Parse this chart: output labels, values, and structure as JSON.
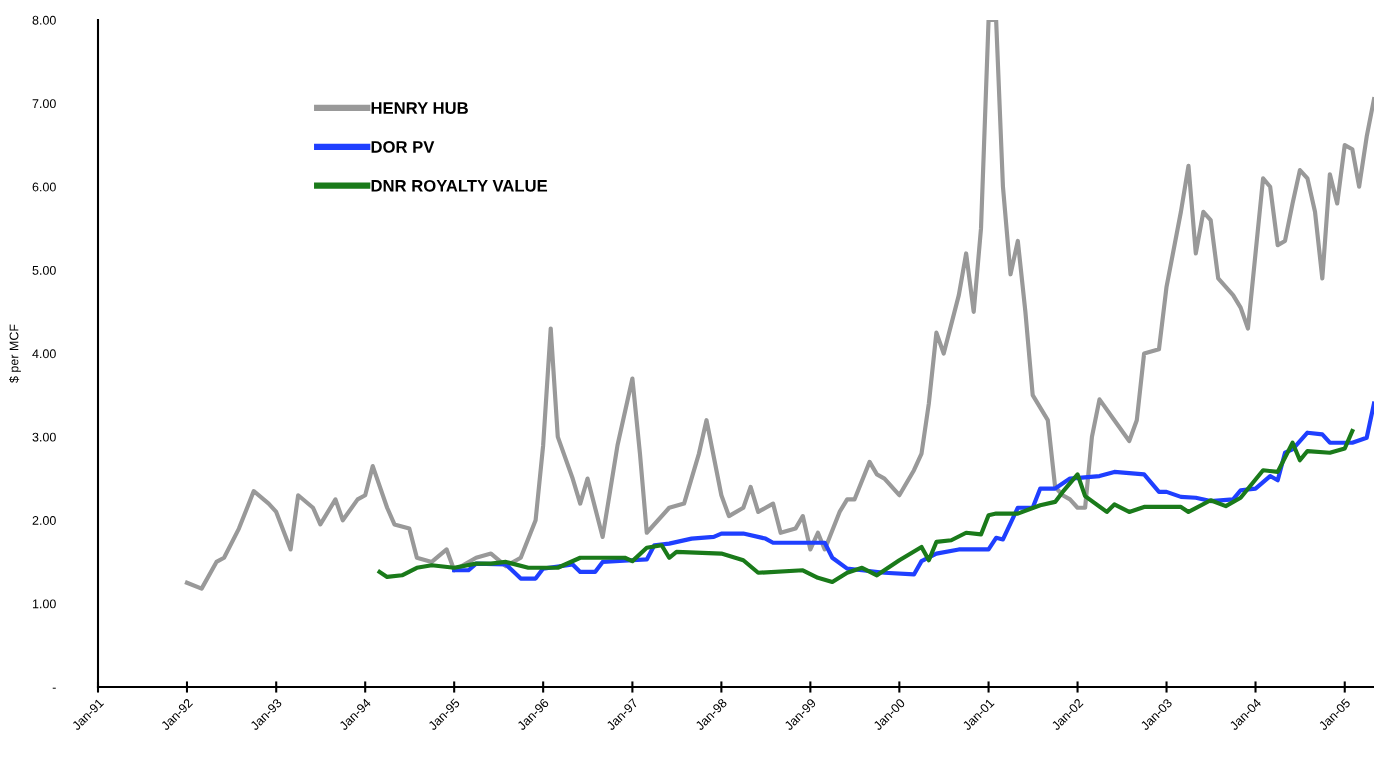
{
  "chart_data": {
    "type": "line",
    "ylabel": "$ per MCF",
    "xlim": [
      "1991-01",
      "2005-05"
    ],
    "ylim": [
      0,
      8
    ],
    "yticks": [
      {
        "value": 0,
        "label": "-"
      },
      {
        "value": 1,
        "label": "1.00"
      },
      {
        "value": 2,
        "label": "2.00"
      },
      {
        "value": 3,
        "label": "3.00"
      },
      {
        "value": 4,
        "label": "4.00"
      },
      {
        "value": 5,
        "label": "5.00"
      },
      {
        "value": 6,
        "label": "6.00"
      },
      {
        "value": 7,
        "label": "7.00"
      },
      {
        "value": 8,
        "label": "8.00"
      }
    ],
    "xticks": [
      {
        "value": "1991-01",
        "label": "Jan-91"
      },
      {
        "value": "1992-01",
        "label": "Jan-92"
      },
      {
        "value": "1993-01",
        "label": "Jan-93"
      },
      {
        "value": "1994-01",
        "label": "Jan-94"
      },
      {
        "value": "1995-01",
        "label": "Jan-95"
      },
      {
        "value": "1996-01",
        "label": "Jan-96"
      },
      {
        "value": "1997-01",
        "label": "Jan-97"
      },
      {
        "value": "1998-01",
        "label": "Jan-98"
      },
      {
        "value": "1999-01",
        "label": "Jan-99"
      },
      {
        "value": "2000-01",
        "label": "Jan-00"
      },
      {
        "value": "2001-01",
        "label": "Jan-01"
      },
      {
        "value": "2002-01",
        "label": "Jan-02"
      },
      {
        "value": "2003-01",
        "label": "Jan-03"
      },
      {
        "value": "2004-01",
        "label": "Jan-04"
      },
      {
        "value": "2005-01",
        "label": "Jan-05"
      }
    ],
    "grid": false,
    "legend": "top left",
    "marker": "none",
    "line_style": "solid",
    "series": [
      {
        "name": "HENRY HUB",
        "color": "#999999",
        "x": [
          "1992-01",
          "1992-03",
          "1992-05",
          "1992-06",
          "1992-08",
          "1992-10",
          "1992-12",
          "1993-01",
          "1993-03",
          "1993-04",
          "1993-06",
          "1993-07",
          "1993-09",
          "1993-10",
          "1993-12",
          "1994-01",
          "1994-02",
          "1994-04",
          "1994-05",
          "1994-07",
          "1994-08",
          "1994-10",
          "1994-12",
          "1995-01",
          "1995-04",
          "1995-06",
          "1995-08",
          "1995-10",
          "1995-12",
          "1996-01",
          "1996-02",
          "1996-03",
          "1996-05",
          "1996-06",
          "1996-07",
          "1996-09",
          "1996-11",
          "1997-01",
          "1997-02",
          "1997-03",
          "1997-06",
          "1997-08",
          "1997-10",
          "1997-11",
          "1998-01",
          "1998-02",
          "1998-04",
          "1998-05",
          "1998-06",
          "1998-08",
          "1998-09",
          "1998-11",
          "1998-12",
          "1999-01",
          "1999-02",
          "1999-03",
          "1999-05",
          "1999-06",
          "1999-07",
          "1999-09",
          "1999-10",
          "1999-11",
          "2000-01",
          "2000-03",
          "2000-04",
          "2000-05",
          "2000-06",
          "2000-07",
          "2000-09",
          "2000-10",
          "2000-11",
          "2000-12",
          "2001-01",
          "2001-02",
          "2001-03",
          "2001-04",
          "2001-05",
          "2001-06",
          "2001-07",
          "2001-09",
          "2001-10",
          "2001-11",
          "2001-12",
          "2002-01",
          "2002-02",
          "2002-03",
          "2002-04",
          "2002-06",
          "2002-08",
          "2002-09",
          "2002-10",
          "2002-12",
          "2003-01",
          "2003-03",
          "2003-04",
          "2003-05",
          "2003-06",
          "2003-07",
          "2003-08",
          "2003-10",
          "2003-11",
          "2003-12",
          "2004-02",
          "2004-03",
          "2004-04",
          "2004-05",
          "2004-06",
          "2004-07",
          "2004-08",
          "2004-09",
          "2004-10",
          "2004-11",
          "2004-12",
          "2005-01",
          "2005-02",
          "2005-03",
          "2005-04",
          "2005-05"
        ],
        "values": [
          1.25,
          1.18,
          1.5,
          1.55,
          1.9,
          2.35,
          2.2,
          2.1,
          1.65,
          2.3,
          2.15,
          1.95,
          2.25,
          2.0,
          2.25,
          2.3,
          2.65,
          2.15,
          1.95,
          1.9,
          1.55,
          1.5,
          1.65,
          1.4,
          1.55,
          1.6,
          1.45,
          1.55,
          2.0,
          2.9,
          4.3,
          3.0,
          2.5,
          2.2,
          2.5,
          1.8,
          2.9,
          3.7,
          2.8,
          1.85,
          2.15,
          2.2,
          2.8,
          3.2,
          2.3,
          2.05,
          2.15,
          2.4,
          2.1,
          2.2,
          1.85,
          1.9,
          2.05,
          1.65,
          1.85,
          1.65,
          2.1,
          2.25,
          2.25,
          2.7,
          2.55,
          2.5,
          2.3,
          2.6,
          2.8,
          3.4,
          4.25,
          4.0,
          4.7,
          5.2,
          4.5,
          5.5,
          8.0,
          8.0,
          6.0,
          4.95,
          5.35,
          4.5,
          3.5,
          3.2,
          2.4,
          2.3,
          2.25,
          2.15,
          2.15,
          3.0,
          3.45,
          3.2,
          2.95,
          3.2,
          4.0,
          4.05,
          4.8,
          5.7,
          6.25,
          5.2,
          5.7,
          5.6,
          4.9,
          4.7,
          4.55,
          4.3,
          6.1,
          6.0,
          5.3,
          5.35,
          5.8,
          6.2,
          6.1,
          5.7,
          4.9,
          6.15,
          5.8,
          6.5,
          6.45,
          6.0,
          6.6,
          7.05
        ]
      },
      {
        "name": "DOR PV",
        "color": "#1f3fff",
        "x": [
          "1995-01",
          "1995-03",
          "1995-04",
          "1995-08",
          "1995-10",
          "1995-12",
          "1996-01",
          "1996-05",
          "1996-06",
          "1996-08",
          "1996-09",
          "1997-01",
          "1997-03",
          "1997-04",
          "1997-06",
          "1997-09",
          "1997-12",
          "1998-01",
          "1998-04",
          "1998-07",
          "1998-08",
          "1999-03",
          "1999-04",
          "1999-06",
          "1999-08",
          "1999-11",
          "2000-03",
          "2000-04",
          "2000-06",
          "2000-09",
          "2001-01",
          "2001-02",
          "2001-03",
          "2001-05",
          "2001-07",
          "2001-08",
          "2001-10",
          "2001-12",
          "2002-04",
          "2002-06",
          "2002-10",
          "2002-12",
          "2003-01",
          "2003-03",
          "2003-05",
          "2003-07",
          "2003-10",
          "2003-11",
          "2004-01",
          "2004-03",
          "2004-04",
          "2004-05",
          "2004-06",
          "2004-08",
          "2004-10",
          "2004-11",
          "2005-02",
          "2005-04",
          "2005-05"
        ],
        "values": [
          1.4,
          1.4,
          1.48,
          1.47,
          1.3,
          1.3,
          1.42,
          1.47,
          1.38,
          1.38,
          1.5,
          1.52,
          1.53,
          1.7,
          1.72,
          1.78,
          1.8,
          1.84,
          1.84,
          1.78,
          1.73,
          1.73,
          1.55,
          1.42,
          1.4,
          1.37,
          1.35,
          1.51,
          1.6,
          1.65,
          1.65,
          1.79,
          1.77,
          2.15,
          2.15,
          2.38,
          2.38,
          2.5,
          2.53,
          2.58,
          2.55,
          2.34,
          2.34,
          2.28,
          2.27,
          2.23,
          2.25,
          2.36,
          2.38,
          2.53,
          2.48,
          2.81,
          2.85,
          3.05,
          3.03,
          2.93,
          2.93,
          2.99,
          3.4
        ]
      },
      {
        "name": "DNR ROYALTY VALUE",
        "color": "#1a7a1a",
        "x": [
          "1994-03",
          "1994-04",
          "1994-06",
          "1994-08",
          "1994-10",
          "1995-01",
          "1995-04",
          "1995-06",
          "1995-08",
          "1995-11",
          "1996-03",
          "1996-06",
          "1996-09",
          "1996-12",
          "1997-01",
          "1997-03",
          "1997-05",
          "1997-06",
          "1997-07",
          "1998-01",
          "1998-04",
          "1998-06",
          "1998-12",
          "1999-02",
          "1999-04",
          "1999-06",
          "1999-08",
          "1999-10",
          "2000-01",
          "2000-04",
          "2000-05",
          "2000-06",
          "2000-08",
          "2000-10",
          "2000-12",
          "2001-01",
          "2001-02",
          "2001-05",
          "2001-08",
          "2001-10",
          "2001-11",
          "2002-01",
          "2002-02",
          "2002-05",
          "2002-06",
          "2002-08",
          "2002-10",
          "2003-03",
          "2003-04",
          "2003-07",
          "2003-09",
          "2003-11",
          "2004-02",
          "2004-04",
          "2004-06",
          "2004-07",
          "2004-08",
          "2004-11",
          "2005-01",
          "2005-02"
        ],
        "values": [
          1.38,
          1.32,
          1.34,
          1.43,
          1.46,
          1.43,
          1.48,
          1.48,
          1.5,
          1.43,
          1.43,
          1.55,
          1.55,
          1.55,
          1.51,
          1.67,
          1.7,
          1.55,
          1.62,
          1.6,
          1.52,
          1.37,
          1.4,
          1.31,
          1.26,
          1.37,
          1.43,
          1.34,
          1.52,
          1.68,
          1.52,
          1.74,
          1.76,
          1.85,
          1.83,
          2.06,
          2.08,
          2.08,
          2.18,
          2.22,
          2.34,
          2.55,
          2.29,
          2.1,
          2.19,
          2.1,
          2.16,
          2.16,
          2.1,
          2.24,
          2.17,
          2.27,
          2.6,
          2.58,
          2.93,
          2.72,
          2.83,
          2.81,
          2.86,
          3.07
        ]
      }
    ]
  }
}
